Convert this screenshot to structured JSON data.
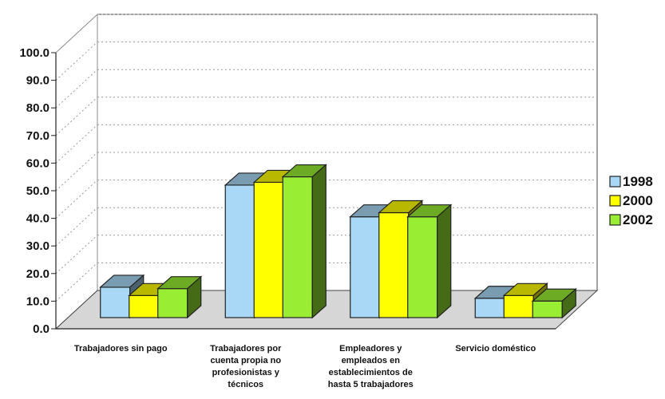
{
  "chart_data": {
    "type": "bar",
    "categories": [
      [
        "Trabajadores sin pago"
      ],
      [
        "Trabajadores por",
        "cuenta propia no",
        "profesionistas y",
        "técnicos"
      ],
      [
        "Empleadores y",
        "empleados en",
        "establecimientos de",
        "hasta 5 trabajadores"
      ],
      [
        "Servicio doméstico"
      ]
    ],
    "series": [
      {
        "name": "1998",
        "color": "#a8d8f5",
        "values": [
          11.0,
          48.0,
          36.5,
          7.0
        ]
      },
      {
        "name": "2000",
        "color": "#ffff00",
        "values": [
          8.0,
          49.0,
          38.0,
          8.0
        ]
      },
      {
        "name": "2002",
        "color": "#99ee33",
        "values": [
          10.5,
          51.0,
          36.5,
          6.0
        ]
      }
    ],
    "yticks": [
      "0.0",
      "10.0",
      "20.0",
      "30.0",
      "40.0",
      "50.0",
      "60.0",
      "70.0",
      "80.0",
      "90.0",
      "100.0"
    ],
    "ylim": [
      0,
      100
    ],
    "grid": true,
    "legend_position": "right",
    "title": "",
    "xlabel": "",
    "ylabel": ""
  }
}
